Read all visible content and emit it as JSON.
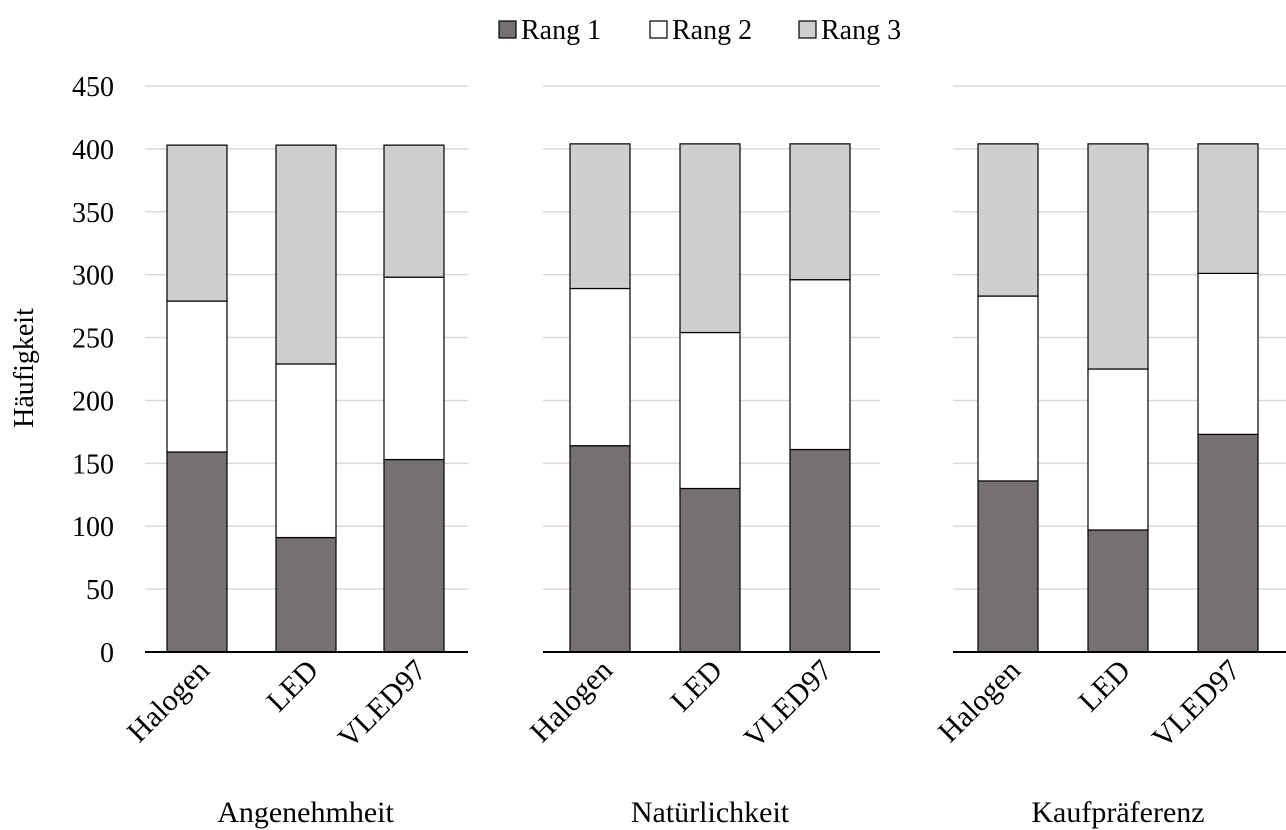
{
  "chart_data": {
    "type": "bar",
    "stacked": true,
    "ylabel": "Häufigkeit",
    "ylim": [
      0,
      450
    ],
    "yticks": [
      0,
      50,
      100,
      150,
      200,
      250,
      300,
      350,
      400,
      450
    ],
    "grid": true,
    "legend_position": "top-center",
    "categories": [
      "Halogen",
      "LED",
      "VLED97"
    ],
    "series": [
      {
        "name": "Rang 1",
        "color": "#767171"
      },
      {
        "name": "Rang 2",
        "color": "#ffffff"
      },
      {
        "name": "Rang 3",
        "color": "#d0cece"
      }
    ],
    "panels": [
      {
        "title": "Angenehmheit",
        "values": [
          [
            159,
            91,
            153
          ],
          [
            120,
            138,
            145
          ],
          [
            124,
            174,
            105
          ]
        ]
      },
      {
        "title": "Natürlichkeit",
        "values": [
          [
            164,
            130,
            161
          ],
          [
            125,
            124,
            135
          ],
          [
            115,
            150,
            108
          ]
        ]
      },
      {
        "title": "Kaufpräferenz",
        "values": [
          [
            136,
            97,
            173
          ],
          [
            147,
            128,
            128
          ],
          [
            121,
            179,
            103
          ]
        ]
      }
    ]
  }
}
